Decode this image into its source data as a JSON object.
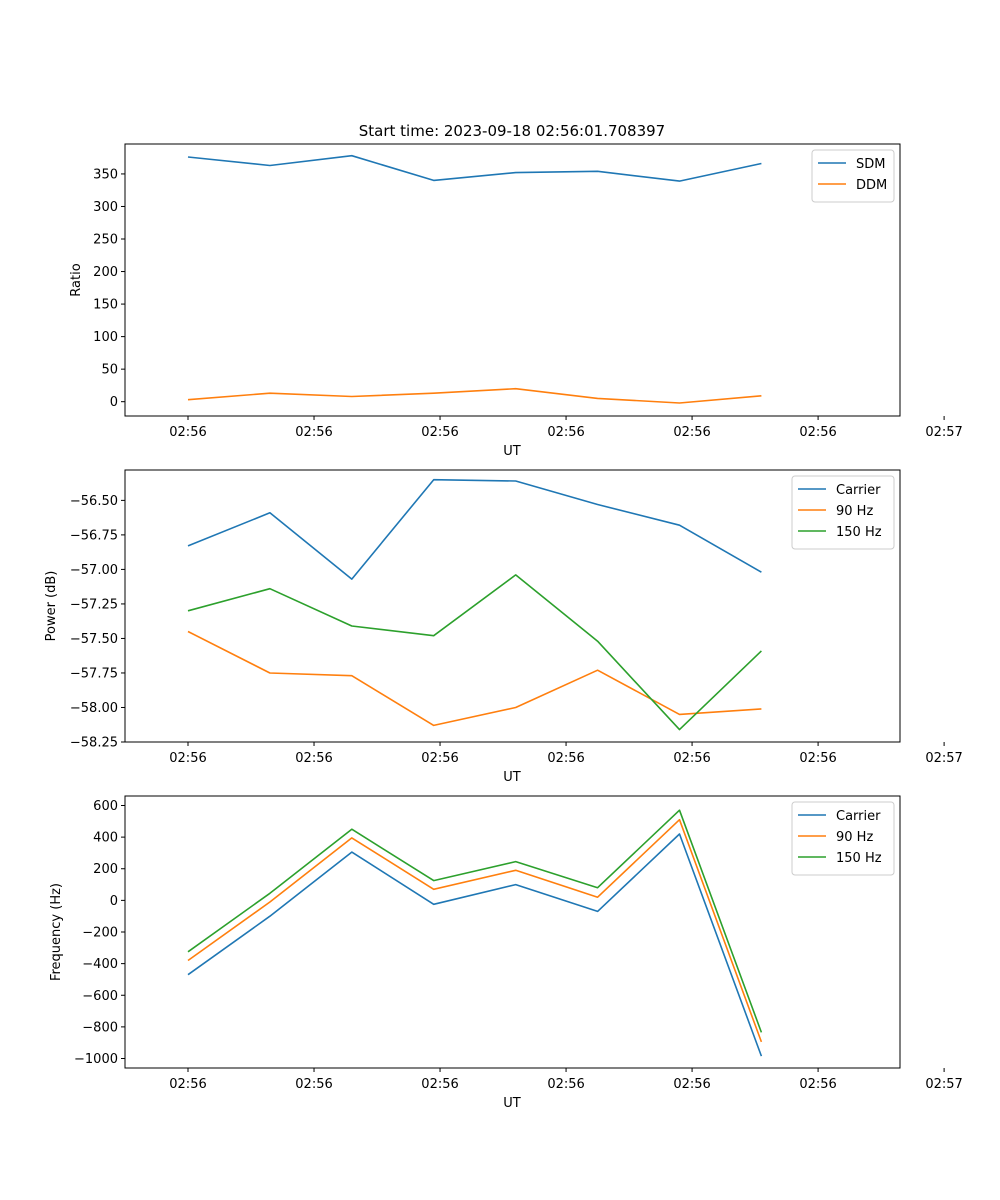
{
  "chart_data": [
    {
      "type": "line",
      "title": "Start time: 2023-09-18 02:56:01.708397",
      "xlabel": "UT",
      "ylabel": "Ratio",
      "xlim": [
        -0.5,
        5.65
      ],
      "ylim": [
        -22,
        396
      ],
      "x": [
        0,
        0.65,
        1.3,
        1.95,
        2.6,
        3.25,
        3.9,
        4.55
      ],
      "xticks": [
        0,
        1,
        2,
        3,
        4,
        5,
        6
      ],
      "xtick_labels": [
        "02:56",
        "02:56",
        "02:56",
        "02:56",
        "02:56",
        "02:56",
        "02:57"
      ],
      "yticks": [
        0,
        50,
        100,
        150,
        200,
        250,
        300,
        350
      ],
      "ytick_labels": [
        "0",
        "50",
        "100",
        "150",
        "200",
        "250",
        "300",
        "350"
      ],
      "legend_position": "top-right",
      "series": [
        {
          "name": "SDM",
          "color": "#1f77b4",
          "values": [
            376,
            363,
            378,
            340,
            352,
            354,
            339,
            366
          ]
        },
        {
          "name": "DDM",
          "color": "#ff7f0e",
          "values": [
            3,
            13,
            8,
            13,
            20,
            5,
            -2,
            9
          ]
        }
      ]
    },
    {
      "type": "line",
      "title": "",
      "xlabel": "UT",
      "ylabel": "Power (dB)",
      "xlim": [
        -0.5,
        5.65
      ],
      "ylim": [
        -58.25,
        -56.28
      ],
      "x": [
        0,
        0.65,
        1.3,
        1.95,
        2.6,
        3.25,
        3.9,
        4.55
      ],
      "xticks": [
        0,
        1,
        2,
        3,
        4,
        5,
        6
      ],
      "xtick_labels": [
        "02:56",
        "02:56",
        "02:56",
        "02:56",
        "02:56",
        "02:56",
        "02:57"
      ],
      "yticks": [
        -58.25,
        -58.0,
        -57.75,
        -57.5,
        -57.25,
        -57.0,
        -56.75,
        -56.5
      ],
      "ytick_labels": [
        "−58.25",
        "−58.00",
        "−57.75",
        "−57.50",
        "−57.25",
        "−57.00",
        "−56.75",
        "−56.50"
      ],
      "legend_position": "top-right",
      "series": [
        {
          "name": "Carrier",
          "color": "#1f77b4",
          "values": [
            -56.83,
            -56.59,
            -57.07,
            -56.35,
            -56.36,
            -56.53,
            -56.68,
            -57.02
          ]
        },
        {
          "name": "90 Hz",
          "color": "#ff7f0e",
          "values": [
            -57.45,
            -57.75,
            -57.77,
            -58.13,
            -58.0,
            -57.73,
            -58.05,
            -58.01
          ]
        },
        {
          "name": "150 Hz",
          "color": "#2ca02c",
          "values": [
            -57.3,
            -57.14,
            -57.41,
            -57.48,
            -57.04,
            -57.52,
            -58.16,
            -57.59
          ]
        }
      ]
    },
    {
      "type": "line",
      "title": "",
      "xlabel": "UT",
      "ylabel": "Frequency (Hz)",
      "xlim": [
        -0.5,
        5.65
      ],
      "ylim": [
        -1060,
        660
      ],
      "x": [
        0,
        0.65,
        1.3,
        1.95,
        2.6,
        3.25,
        3.9,
        4.55
      ],
      "xticks": [
        0,
        1,
        2,
        3,
        4,
        5,
        6
      ],
      "xtick_labels": [
        "02:56",
        "02:56",
        "02:56",
        "02:56",
        "02:56",
        "02:56",
        "02:57"
      ],
      "yticks": [
        -1000,
        -800,
        -600,
        -400,
        -200,
        0,
        200,
        400,
        600
      ],
      "ytick_labels": [
        "−1000",
        "−800",
        "−600",
        "−400",
        "−200",
        "0",
        "200",
        "400",
        "600"
      ],
      "legend_position": "top-right",
      "series": [
        {
          "name": "Carrier",
          "color": "#1f77b4",
          "values": [
            -470,
            -100,
            305,
            -25,
            100,
            -70,
            420,
            -985
          ]
        },
        {
          "name": "90 Hz",
          "color": "#ff7f0e",
          "values": [
            -380,
            -10,
            395,
            70,
            190,
            20,
            510,
            -895
          ]
        },
        {
          "name": "150 Hz",
          "color": "#2ca02c",
          "values": [
            -325,
            45,
            450,
            125,
            245,
            80,
            570,
            -835
          ]
        }
      ]
    }
  ]
}
